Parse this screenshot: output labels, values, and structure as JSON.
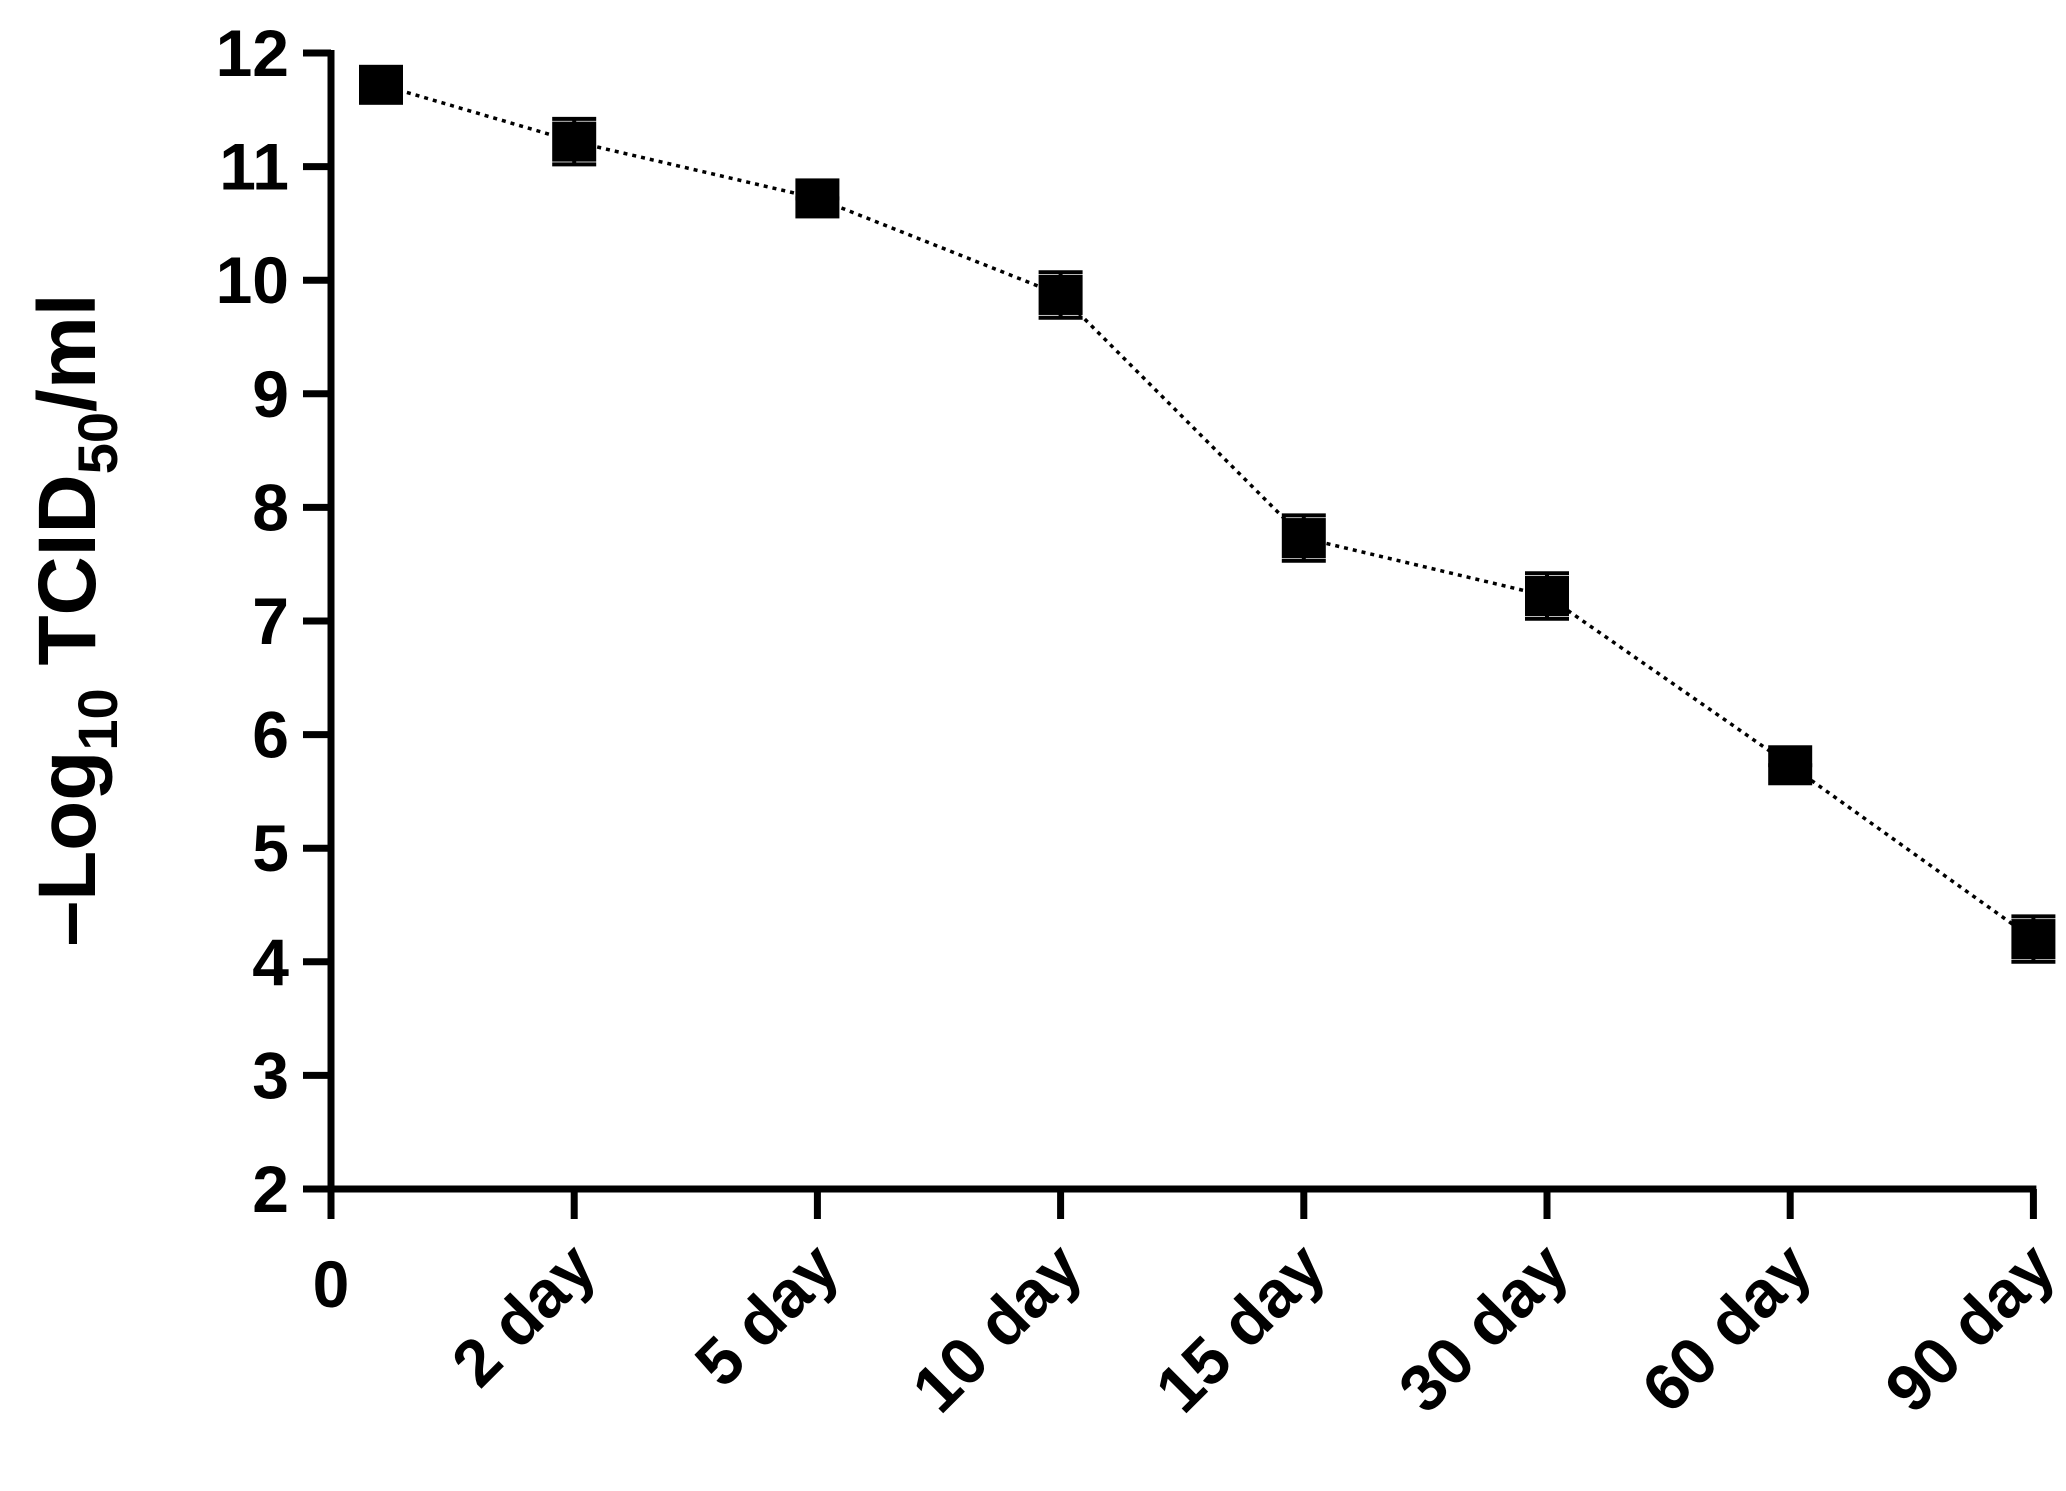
{
  "chart_data": {
    "type": "line",
    "ylabel": [
      "–Log",
      "10",
      " TCID",
      "50",
      "/ml"
    ],
    "categories": [
      "0",
      "2 day",
      "5 day",
      "10 day",
      "15 day",
      "30 day",
      "60 day",
      "90 day"
    ],
    "series": [
      {
        "color": "#000000",
        "values": [
          11.72,
          11.22,
          10.72,
          9.87,
          7.73,
          7.22,
          5.73,
          4.2
        ],
        "errors": [
          0,
          0.2,
          0,
          0.2,
          0.2,
          0.2,
          0,
          0.2
        ]
      }
    ],
    "ylim": [
      2,
      12
    ],
    "yticks": [
      2,
      3,
      4,
      5,
      6,
      7,
      8,
      9,
      10,
      11,
      12
    ]
  }
}
